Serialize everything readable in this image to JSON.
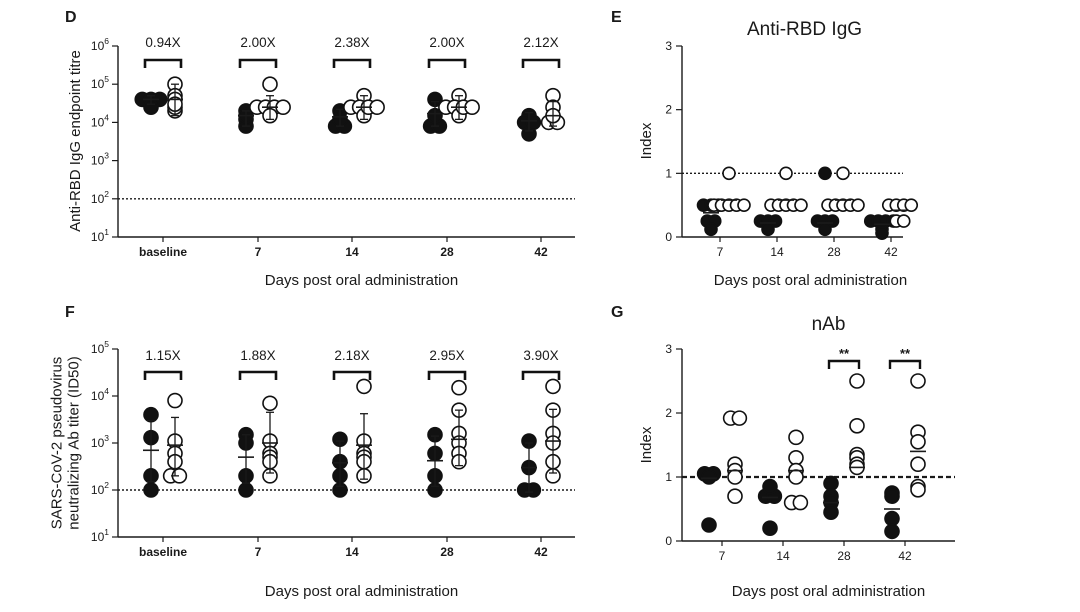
{
  "chart_data": [
    {
      "panel": "D",
      "type": "scatter",
      "title": "",
      "xlabel": "Days post oral administration",
      "ylabel": "Anti-RBD IgG endpoint titre",
      "yscale": "log",
      "ylim": [
        10,
        1000000
      ],
      "y_ticks": [
        {
          "value": 10,
          "base": "10",
          "exp": "1"
        },
        {
          "value": 100,
          "base": "10",
          "exp": "2"
        },
        {
          "value": 1000,
          "base": "10",
          "exp": "3"
        },
        {
          "value": 10000,
          "base": "10",
          "exp": "4"
        },
        {
          "value": 100000,
          "base": "10",
          "exp": "5"
        },
        {
          "value": 1000000,
          "base": "10",
          "exp": "6"
        }
      ],
      "categories": [
        "baseline",
        "7",
        "14",
        "28",
        "42"
      ],
      "reference_line": 100,
      "fold_changes": [
        "0.94X",
        "2.00X",
        "2.38X",
        "2.00X",
        "2.12X"
      ],
      "series": [
        {
          "name": "filled",
          "values": [
            [
              40000,
              40000,
              40000,
              25000
            ],
            [
              20000,
              12000,
              8000,
              15000
            ],
            [
              20000,
              8000,
              8000,
              12000
            ],
            [
              40000,
              8000,
              8000,
              15000
            ],
            [
              15000,
              10000,
              5000,
              10000
            ]
          ],
          "mean": [
            40000,
            15000,
            14000,
            17000,
            11000
          ],
          "sd": [
            [
              30000,
              50000
            ],
            [
              8000,
              20000
            ],
            [
              8000,
              22000
            ],
            [
              8000,
              35000
            ],
            [
              6000,
              18000
            ]
          ]
        },
        {
          "name": "open",
          "values": [
            [
              100000,
              50000,
              40000,
              20000,
              25000,
              30000
            ],
            [
              100000,
              25000,
              25000,
              25000,
              15000,
              25000
            ],
            [
              50000,
              25000,
              25000,
              15000,
              25000,
              25000
            ],
            [
              50000,
              25000,
              25000,
              15000,
              25000,
              25000
            ],
            [
              50000,
              25000,
              12000,
              10000,
              10000,
              15000
            ]
          ],
          "mean": [
            40000,
            25000,
            25000,
            25000,
            15000
          ],
          "sd": [
            [
              15000,
              100000
            ],
            [
              12000,
              50000
            ],
            [
              12000,
              50000
            ],
            [
              12000,
              50000
            ],
            [
              8000,
              35000
            ]
          ]
        }
      ]
    },
    {
      "panel": "E",
      "type": "scatter",
      "title": "Anti-RBD IgG",
      "xlabel": "Days post oral administration",
      "ylabel": "Index",
      "yscale": "linear",
      "ylim": [
        0,
        3
      ],
      "y_ticks": [
        0,
        1,
        2,
        3
      ],
      "categories": [
        "7",
        "14",
        "28",
        "42"
      ],
      "reference_line": 1,
      "series": [
        {
          "name": "filled",
          "values": [
            [
              0.5,
              0.5,
              0.5,
              0.25,
              0.25,
              0.12
            ],
            [
              0.25,
              0.25,
              0.25,
              0.12
            ],
            [
              1.0,
              0.25,
              0.25,
              0.25,
              0.12
            ],
            [
              0.25,
              0.25,
              0.25,
              0.25,
              0.12,
              0.06
            ]
          ],
          "mean": [
            0.38,
            0.22,
            0.22,
            0.2
          ]
        },
        {
          "name": "open",
          "values": [
            [
              1.0,
              0.5,
              0.5,
              0.5,
              0.5,
              0.5
            ],
            [
              1.0,
              0.5,
              0.5,
              0.5,
              0.5,
              0.5
            ],
            [
              1.0,
              0.5,
              0.5,
              0.5,
              0.5,
              0.5
            ],
            [
              0.5,
              0.5,
              0.5,
              0.5,
              0.25,
              0.25
            ]
          ],
          "mean": [
            0.58,
            0.58,
            0.58,
            0.42
          ]
        }
      ]
    },
    {
      "panel": "F",
      "type": "scatter",
      "title": "",
      "xlabel": "Days post oral administration",
      "ylabel": [
        "SARS-CoV-2 pseudovirus",
        "neutralizing Ab titer (ID50)"
      ],
      "yscale": "log",
      "ylim": [
        10,
        100000
      ],
      "y_ticks": [
        {
          "value": 10,
          "base": "10",
          "exp": "1"
        },
        {
          "value": 100,
          "base": "10",
          "exp": "2"
        },
        {
          "value": 1000,
          "base": "10",
          "exp": "3"
        },
        {
          "value": 10000,
          "base": "10",
          "exp": "4"
        },
        {
          "value": 100000,
          "base": "10",
          "exp": "5"
        }
      ],
      "categories": [
        "baseline",
        "7",
        "14",
        "28",
        "42"
      ],
      "reference_line": 100,
      "fold_changes": [
        "1.15X",
        "1.88X",
        "2.18X",
        "2.95X",
        "3.90X"
      ],
      "series": [
        {
          "name": "filled",
          "values": [
            [
              4000,
              1300,
              200,
              100
            ],
            [
              1500,
              1000,
              200,
              100
            ],
            [
              1200,
              400,
              200,
              100
            ],
            [
              1500,
              600,
              200,
              100
            ],
            [
              1100,
              300,
              100,
              100
            ]
          ],
          "mean": [
            700,
            500,
            380,
            420,
            300
          ],
          "sd": [
            [
              150,
              3000
            ],
            [
              140,
              1500
            ],
            [
              120,
              1100
            ],
            [
              120,
              1400
            ],
            [
              90,
              1000
            ]
          ]
        },
        {
          "name": "open",
          "values": [
            [
              8000,
              1100,
              600,
              200,
              200,
              400
            ],
            [
              7000,
              1100,
              600,
              200,
              500,
              400
            ],
            [
              16000,
              1100,
              600,
              200,
              500,
              400
            ],
            [
              15000,
              5000,
              1600,
              1000,
              600,
              400
            ],
            [
              16000,
              5000,
              1600,
              1000,
              400,
              200
            ]
          ],
          "mean": [
            900,
            1000,
            900,
            1200,
            1100
          ],
          "sd": [
            [
              200,
              3500
            ],
            [
              230,
              4500
            ],
            [
              170,
              4200
            ],
            [
              330,
              5000
            ],
            [
              230,
              5200
            ]
          ]
        }
      ]
    },
    {
      "panel": "G",
      "type": "scatter",
      "title": "nAb",
      "xlabel": "Days post oral administration",
      "ylabel": "Index",
      "yscale": "linear",
      "ylim": [
        0,
        3
      ],
      "y_ticks": [
        0,
        1,
        2,
        3
      ],
      "categories": [
        "7",
        "14",
        "28",
        "42"
      ],
      "reference_line": 1,
      "significance": [
        {
          "category": "28",
          "label": "**"
        },
        {
          "category": "42",
          "label": "**"
        }
      ],
      "series": [
        {
          "name": "filled",
          "values": [
            [
              1.05,
              1.05,
              1.0,
              0.25
            ],
            [
              0.7,
              0.7,
              0.85,
              0.2
            ],
            [
              0.9,
              0.7,
              0.6,
              0.45
            ],
            [
              0.75,
              0.7,
              0.35,
              0.15
            ]
          ],
          "mean": [
            0.98,
            0.68,
            0.6,
            0.5
          ]
        },
        {
          "name": "open",
          "values": [
            [
              1.92,
              1.92,
              1.2,
              1.1,
              1.0,
              0.7
            ],
            [
              1.62,
              1.3,
              1.1,
              1.0,
              0.6,
              0.6
            ],
            [
              2.5,
              1.8,
              1.35,
              1.3,
              1.2,
              1.15
            ],
            [
              2.5,
              1.7,
              1.55,
              1.2,
              0.85,
              0.8
            ]
          ],
          "mean": [
            1.1,
            1.1,
            1.15,
            1.4
          ]
        }
      ]
    }
  ]
}
